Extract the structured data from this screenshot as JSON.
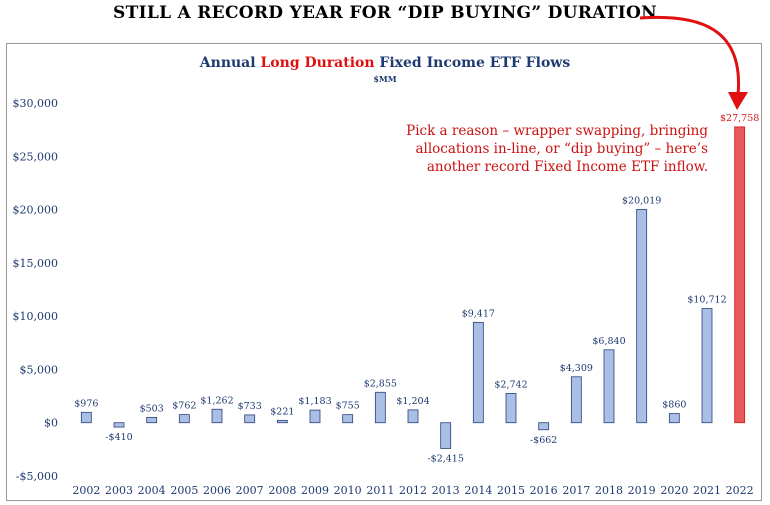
{
  "headline": "STILL A RECORD YEAR FOR “DIP BUYING” DURATION",
  "title": {
    "part1": "Annual ",
    "highlight": "Long Duration",
    "part2": " Fixed Income ETF Flows"
  },
  "subtitle": "$MM",
  "annotation": "Pick a reason – wrapper swapping, bringing allocations in-line, or “dip buying” – here’s another record Fixed Income ETF inflow.",
  "colors": {
    "bar_fill": "#a9bfe6",
    "bar_stroke": "#2d3f7a",
    "highlight_fill": "#e8575a",
    "highlight_stroke": "#d01818",
    "arrow": "#e01010"
  },
  "chart_data": {
    "type": "bar",
    "title": "Annual Long Duration Fixed Income ETF Flows",
    "subtitle": "$MM",
    "categories": [
      "2002",
      "2003",
      "2004",
      "2005",
      "2006",
      "2007",
      "2008",
      "2009",
      "2010",
      "2011",
      "2012",
      "2013",
      "2014",
      "2015",
      "2016",
      "2017",
      "2018",
      "2019",
      "2020",
      "2021",
      "2022"
    ],
    "values": [
      976,
      -410,
      503,
      762,
      1262,
      733,
      221,
      1183,
      755,
      2855,
      1204,
      -2415,
      9417,
      2742,
      -662,
      4309,
      6840,
      20019,
      860,
      10712,
      27758
    ],
    "value_labels": [
      "$976",
      "-$410",
      "$503",
      "$762",
      "$1,262",
      "$733",
      "$221",
      "$1,183",
      "$755",
      "$2,855",
      "$1,204",
      "-$2,415",
      "$9,417",
      "$2,742",
      "-$662",
      "$4,309",
      "$6,840",
      "$20,019",
      "$860",
      "$10,712",
      "$27,758"
    ],
    "highlight_index": 20,
    "ylim": [
      -5000,
      30000
    ],
    "yticks": [
      -5000,
      0,
      5000,
      10000,
      15000,
      20000,
      25000,
      30000
    ],
    "ytick_labels": [
      "-$5,000",
      "$0",
      "$5,000",
      "$10,000",
      "$15,000",
      "$20,000",
      "$25,000",
      "$30,000"
    ],
    "grid": false,
    "legend": "none"
  }
}
